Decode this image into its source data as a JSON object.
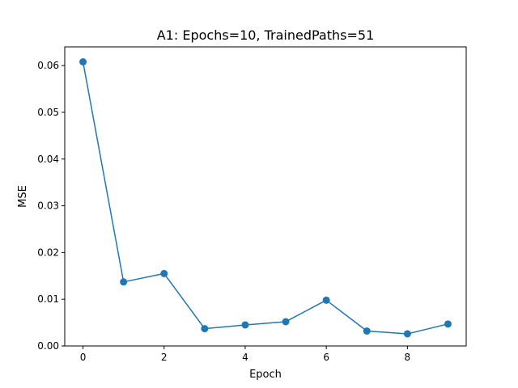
{
  "chart_data": {
    "type": "line",
    "title": "A1: Epochs=10, TrainedPaths=51",
    "xlabel": "Epoch",
    "ylabel": "MSE",
    "xlim": [
      -0.45,
      9.45
    ],
    "ylim": [
      0.0,
      0.064
    ],
    "xticks": [
      0,
      2,
      4,
      6,
      8
    ],
    "xtick_labels": [
      "0",
      "2",
      "4",
      "6",
      "8"
    ],
    "yticks": [
      0.0,
      0.01,
      0.02,
      0.03,
      0.04,
      0.05,
      0.06
    ],
    "ytick_labels": [
      "0.00",
      "0.01",
      "0.02",
      "0.03",
      "0.04",
      "0.05",
      "0.06"
    ],
    "grid": false,
    "series": [
      {
        "x": [
          0,
          1,
          2,
          3,
          4,
          5,
          6,
          7,
          8,
          9
        ],
        "values": [
          0.0608,
          0.0137,
          0.0155,
          0.0037,
          0.0045,
          0.0052,
          0.0098,
          0.0032,
          0.0026,
          0.0047
        ],
        "color": "#1f77b4",
        "marker": "circle"
      }
    ]
  }
}
